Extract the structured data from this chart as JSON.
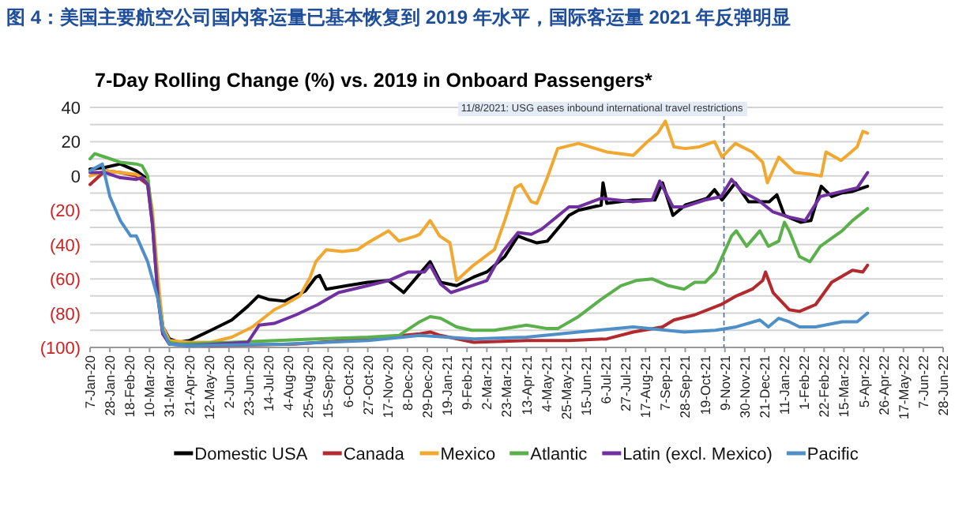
{
  "chart_data": {
    "type": "line",
    "title": "图 4：美国主要航空公司国内客运量已基本恢复到 2019 年水平，国际客运量 2021 年反弹明显",
    "subtitle": "7-Day Rolling Change (%) vs. 2019 in Onboard Passengers*",
    "xlim": [
      "2020-01-07",
      "2022-06-28"
    ],
    "xticks": [
      {
        "value": "2020-01-07",
        "label": "7-Jan-20"
      },
      {
        "value": "2020-01-28",
        "label": "28-Jan-20"
      },
      {
        "value": "2020-02-18",
        "label": "18-Feb-20"
      },
      {
        "value": "2020-03-10",
        "label": "10-Mar-20"
      },
      {
        "value": "2020-03-31",
        "label": "31-Mar-20"
      },
      {
        "value": "2020-04-21",
        "label": "21-Apr-20"
      },
      {
        "value": "2020-05-12",
        "label": "12-May-20"
      },
      {
        "value": "2020-06-02",
        "label": "2-Jun-20"
      },
      {
        "value": "2020-06-23",
        "label": "23-Jun-20"
      },
      {
        "value": "2020-07-14",
        "label": "14-Jul-20"
      },
      {
        "value": "2020-08-04",
        "label": "4-Aug-20"
      },
      {
        "value": "2020-08-25",
        "label": "25-Aug-20"
      },
      {
        "value": "2020-09-15",
        "label": "15-Sep-20"
      },
      {
        "value": "2020-10-06",
        "label": "6-Oct-20"
      },
      {
        "value": "2020-10-27",
        "label": "27-Oct-20"
      },
      {
        "value": "2020-11-17",
        "label": "17-Nov-20"
      },
      {
        "value": "2020-12-08",
        "label": "8-Dec-20"
      },
      {
        "value": "2020-12-29",
        "label": "29-Dec-20"
      },
      {
        "value": "2021-01-19",
        "label": "19-Jan-21"
      },
      {
        "value": "2021-02-09",
        "label": "9-Feb-21"
      },
      {
        "value": "2021-03-02",
        "label": "2-Mar-21"
      },
      {
        "value": "2021-03-23",
        "label": "23-Mar-21"
      },
      {
        "value": "2021-04-13",
        "label": "13-Apr-21"
      },
      {
        "value": "2021-05-04",
        "label": "4-May-21"
      },
      {
        "value": "2021-05-25",
        "label": "25-May-21"
      },
      {
        "value": "2021-06-15",
        "label": "15-Jun-21"
      },
      {
        "value": "2021-07-06",
        "label": "6-Jul-21"
      },
      {
        "value": "2021-07-27",
        "label": "27-Jul-21"
      },
      {
        "value": "2021-08-17",
        "label": "17-Aug-21"
      },
      {
        "value": "2021-09-07",
        "label": "7-Sep-21"
      },
      {
        "value": "2021-09-28",
        "label": "28-Sep-21"
      },
      {
        "value": "2021-10-19",
        "label": "19-Oct-21"
      },
      {
        "value": "2021-11-09",
        "label": "9-Nov-21"
      },
      {
        "value": "2021-11-30",
        "label": "30-Nov-21"
      },
      {
        "value": "2021-12-21",
        "label": "21-Dec-21"
      },
      {
        "value": "2022-01-11",
        "label": "11-Jan-22"
      },
      {
        "value": "2022-02-01",
        "label": "1-Feb-22"
      },
      {
        "value": "2022-02-22",
        "label": "22-Feb-22"
      },
      {
        "value": "2022-03-15",
        "label": "15-Mar-22"
      },
      {
        "value": "2022-04-05",
        "label": "5-Apr-22"
      },
      {
        "value": "2022-04-26",
        "label": "26-Apr-22"
      },
      {
        "value": "2022-05-17",
        "label": "17-May-22"
      },
      {
        "value": "2022-06-07",
        "label": "7-Jun-22"
      },
      {
        "value": "2022-06-28",
        "label": "28-Jun-22"
      }
    ],
    "ylim": [
      -100,
      40
    ],
    "yticks": [
      40,
      {
        "value": 30,
        "label": null
      },
      20,
      {
        "value": 10,
        "label": null
      },
      0,
      {
        "value": -10,
        "label": null
      },
      {
        "value": -20,
        "label": "(20)"
      },
      {
        "value": -30,
        "label": null
      },
      {
        "value": -40,
        "label": "(40)"
      },
      {
        "value": -50,
        "label": null
      },
      {
        "value": -60,
        "label": "(60)"
      },
      {
        "value": -70,
        "label": null
      },
      {
        "value": -80,
        "label": "(80)"
      },
      {
        "value": -90,
        "label": null
      },
      {
        "value": -100,
        "label": "(100)"
      }
    ],
    "grid": "y",
    "legend": "bottom",
    "ref_lines": [
      {
        "axis": "x",
        "value": "2021-11-08",
        "label": "11/8/2021: USG eases inbound international travel restrictions",
        "line_style": "dashed",
        "color": "#4a6a9a"
      }
    ],
    "series": [
      {
        "name": "Domestic USA",
        "color": "#000000",
        "x": [
          "2020-01-07",
          "2020-01-23",
          "2020-02-08",
          "2020-02-25",
          "2020-03-08",
          "2020-03-13",
          "2020-03-19",
          "2020-03-24",
          "2020-03-31",
          "2020-04-10",
          "2020-04-21",
          "2020-05-14",
          "2020-06-05",
          "2020-06-22",
          "2020-07-03",
          "2020-07-14",
          "2020-07-31",
          "2020-08-22",
          "2020-09-02",
          "2020-09-06",
          "2020-09-13",
          "2020-10-05",
          "2020-10-27",
          "2020-11-18",
          "2020-12-04",
          "2020-12-21",
          "2021-01-01",
          "2021-01-12",
          "2021-01-29",
          "2021-02-16",
          "2021-03-02",
          "2021-03-21",
          "2021-04-04",
          "2021-04-13",
          "2021-04-24",
          "2021-05-05",
          "2021-05-28",
          "2021-06-07",
          "2021-07-01",
          "2021-07-03",
          "2021-07-07",
          "2021-08-04",
          "2021-08-27",
          "2021-09-04",
          "2021-09-15",
          "2021-09-28",
          "2021-10-21",
          "2021-10-29",
          "2021-11-06",
          "2021-11-20",
          "2021-12-04",
          "2021-12-26",
          "2022-01-03",
          "2022-01-11",
          "2022-01-28",
          "2022-02-08",
          "2022-02-19",
          "2022-03-02",
          "2022-03-12",
          "2022-03-24",
          "2022-04-09"
        ],
        "values": [
          4,
          5,
          7,
          3,
          -2,
          -25,
          -65,
          -88,
          -95,
          -97,
          -96,
          -90,
          -84,
          -76,
          -70,
          -72,
          -73,
          -67,
          -59,
          -58,
          -66,
          -64,
          -62,
          -61,
          -68,
          -57,
          -50,
          -62,
          -64,
          -59,
          -56,
          -47,
          -35,
          -37,
          -39,
          -38,
          -23,
          -20,
          -17,
          -4,
          -16,
          -14,
          -14,
          -4,
          -23,
          -17,
          -13,
          -8,
          -14,
          -4,
          -15,
          -15,
          -11,
          -23,
          -27,
          -26,
          -6,
          -12,
          -10,
          -9,
          -6
        ]
      },
      {
        "name": "Canada",
        "color": "#b22a2e",
        "x": [
          "2020-01-07",
          "2020-01-23",
          "2020-02-08",
          "2020-02-25",
          "2020-03-08",
          "2020-03-13",
          "2020-03-19",
          "2020-03-24",
          "2020-03-31",
          "2020-05-14",
          "2020-08-11",
          "2020-10-27",
          "2020-12-21",
          "2021-01-01",
          "2021-01-12",
          "2021-02-16",
          "2021-04-13",
          "2021-05-28",
          "2021-07-07",
          "2021-08-04",
          "2021-09-04",
          "2021-09-16",
          "2021-10-08",
          "2021-11-05",
          "2021-11-21",
          "2021-12-08",
          "2021-12-19",
          "2021-12-22",
          "2021-12-30",
          "2022-01-16",
          "2022-01-27",
          "2022-02-13",
          "2022-03-02",
          "2022-03-24",
          "2022-04-04",
          "2022-04-09"
        ],
        "values": [
          -5,
          3,
          2,
          0,
          -5,
          -28,
          -70,
          -92,
          -98,
          -99,
          -98,
          -95,
          -92,
          -91,
          -93,
          -97,
          -96,
          -96,
          -95,
          -91,
          -88,
          -84,
          -81,
          -75,
          -70,
          -66,
          -61,
          -56,
          -68,
          -78,
          -79,
          -75,
          -62,
          -55,
          -56,
          -52
        ]
      },
      {
        "name": "Mexico",
        "color": "#f0a830",
        "x": [
          "2020-01-07",
          "2020-01-23",
          "2020-02-08",
          "2020-02-25",
          "2020-03-08",
          "2020-03-13",
          "2020-03-19",
          "2020-03-24",
          "2020-03-31",
          "2020-04-21",
          "2020-05-14",
          "2020-06-05",
          "2020-06-27",
          "2020-07-20",
          "2020-07-31",
          "2020-08-16",
          "2020-08-27",
          "2020-09-02",
          "2020-09-13",
          "2020-09-30",
          "2020-10-16",
          "2020-10-27",
          "2020-11-18",
          "2020-11-29",
          "2020-12-17",
          "2020-12-21",
          "2021-01-01",
          "2021-01-11",
          "2021-01-22",
          "2021-01-29",
          "2021-02-16",
          "2021-03-10",
          "2021-03-21",
          "2021-04-01",
          "2021-04-07",
          "2021-04-18",
          "2021-04-24",
          "2021-05-05",
          "2021-05-16",
          "2021-06-07",
          "2021-07-07",
          "2021-08-04",
          "2021-08-19",
          "2021-08-30",
          "2021-09-07",
          "2021-09-16",
          "2021-09-28",
          "2021-10-13",
          "2021-10-29",
          "2021-11-06",
          "2021-11-20",
          "2021-12-08",
          "2021-12-19",
          "2021-12-24",
          "2022-01-05",
          "2022-01-22",
          "2022-02-08",
          "2022-02-19",
          "2022-02-24",
          "2022-03-12",
          "2022-03-29",
          "2022-04-04",
          "2022-04-09"
        ],
        "values": [
          0,
          3,
          2,
          1,
          -3,
          -20,
          -60,
          -88,
          -96,
          -97,
          -97,
          -94,
          -88,
          -78,
          -75,
          -70,
          -59,
          -50,
          -43,
          -44,
          -43,
          -39,
          -32,
          -38,
          -35,
          -34,
          -26,
          -35,
          -39,
          -61,
          -52,
          -43,
          -26,
          -7,
          -5,
          -15,
          -16,
          -1,
          16,
          19,
          14,
          12,
          20,
          25,
          32,
          17,
          16,
          17,
          20,
          11,
          19,
          14,
          8,
          -4,
          11,
          2,
          1,
          0,
          14,
          9,
          17,
          26,
          25
        ]
      },
      {
        "name": "Atlantic",
        "color": "#5ab04a",
        "x": [
          "2020-01-07",
          "2020-01-12",
          "2020-01-23",
          "2020-02-08",
          "2020-02-25",
          "2020-03-02",
          "2020-03-08",
          "2020-03-13",
          "2020-03-19",
          "2020-03-24",
          "2020-03-31",
          "2020-04-10",
          "2020-06-05",
          "2020-09-02",
          "2020-10-27",
          "2020-11-29",
          "2020-12-21",
          "2021-01-01",
          "2021-01-12",
          "2021-01-29",
          "2021-02-14",
          "2021-03-10",
          "2021-04-13",
          "2021-05-05",
          "2021-05-16",
          "2021-06-07",
          "2021-07-01",
          "2021-07-22",
          "2021-08-07",
          "2021-08-24",
          "2021-09-10",
          "2021-09-27",
          "2021-10-08",
          "2021-10-19",
          "2021-10-30",
          "2021-11-16",
          "2021-11-21",
          "2021-12-02",
          "2021-12-16",
          "2021-12-25",
          "2022-01-05",
          "2022-01-11",
          "2022-01-16",
          "2022-01-27",
          "2022-02-07",
          "2022-02-18",
          "2022-03-13",
          "2022-03-24",
          "2022-04-09"
        ],
        "values": [
          10,
          13,
          11,
          8,
          7,
          6,
          0,
          -26,
          -70,
          -92,
          -97,
          -98,
          -97,
          -95,
          -94,
          -93,
          -85,
          -82,
          -83,
          -88,
          -90,
          -90,
          -87,
          -89,
          -89,
          -82,
          -72,
          -64,
          -61,
          -60,
          -64,
          -66,
          -62,
          -62,
          -56,
          -35,
          -32,
          -41,
          -32,
          -41,
          -38,
          -27,
          -32,
          -47,
          -50,
          -41,
          -32,
          -26,
          -19
        ]
      },
      {
        "name": "Latin (excl. Mexico)",
        "color": "#7030a0",
        "x": [
          "2020-01-07",
          "2020-01-23",
          "2020-02-08",
          "2020-02-25",
          "2020-03-02",
          "2020-03-08",
          "2020-03-13",
          "2020-03-19",
          "2020-03-24",
          "2020-03-31",
          "2020-04-21",
          "2020-06-22",
          "2020-07-04",
          "2020-07-20",
          "2020-08-12",
          "2020-09-04",
          "2020-09-26",
          "2020-10-27",
          "2020-11-18",
          "2020-12-09",
          "2020-12-26",
          "2021-01-01",
          "2021-01-12",
          "2021-01-23",
          "2021-02-14",
          "2021-03-02",
          "2021-03-19",
          "2021-04-04",
          "2021-04-18",
          "2021-04-29",
          "2021-05-28",
          "2021-06-07",
          "2021-07-01",
          "2021-08-04",
          "2021-08-24",
          "2021-09-01",
          "2021-09-15",
          "2021-09-27",
          "2021-10-19",
          "2021-11-05",
          "2021-11-16",
          "2021-11-27",
          "2021-12-14",
          "2021-12-30",
          "2022-01-16",
          "2022-02-02",
          "2022-02-18",
          "2022-03-13",
          "2022-03-29",
          "2022-04-09"
        ],
        "values": [
          2,
          2,
          -1,
          -2,
          -1,
          -5,
          -28,
          -72,
          -92,
          -98,
          -99,
          -97,
          -87,
          -86,
          -81,
          -75,
          -68,
          -64,
          -61,
          -56,
          -56,
          -52,
          -63,
          -68,
          -64,
          -61,
          -44,
          -33,
          -34,
          -31,
          -18,
          -18,
          -13,
          -15,
          -14,
          -3,
          -18,
          -18,
          -14,
          -12,
          -2,
          -9,
          -14,
          -21,
          -24,
          -26,
          -12,
          -9,
          -7,
          2
        ]
      },
      {
        "name": "Pacific",
        "color": "#4f8fc8",
        "x": [
          "2020-01-07",
          "2020-01-20",
          "2020-01-28",
          "2020-02-08",
          "2020-02-19",
          "2020-02-25",
          "2020-03-08",
          "2020-03-19",
          "2020-03-24",
          "2020-03-31",
          "2020-04-21",
          "2020-07-31",
          "2020-10-27",
          "2020-12-21",
          "2021-02-16",
          "2021-04-13",
          "2021-06-07",
          "2021-08-04",
          "2021-09-27",
          "2021-10-30",
          "2021-11-21",
          "2021-12-16",
          "2021-12-25",
          "2022-01-05",
          "2022-01-16",
          "2022-01-27",
          "2022-02-13",
          "2022-03-13",
          "2022-03-29",
          "2022-04-09"
        ],
        "values": [
          3,
          7,
          -12,
          -26,
          -35,
          -35,
          -50,
          -72,
          -90,
          -98,
          -99,
          -98,
          -96,
          -93,
          -95,
          -94,
          -91,
          -88,
          -91,
          -90,
          -88,
          -84,
          -88,
          -83,
          -85,
          -88,
          -88,
          -85,
          -85,
          -80
        ]
      }
    ]
  }
}
